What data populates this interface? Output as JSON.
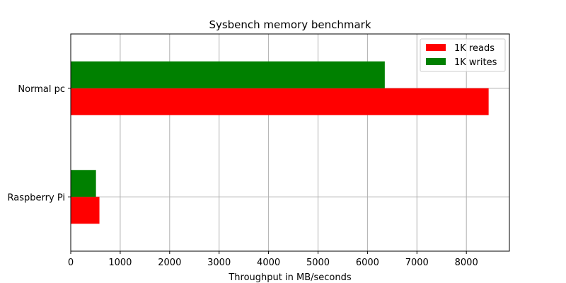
{
  "chart_data": {
    "type": "bar",
    "orientation": "horizontal",
    "title": "Sysbench memory benchmark",
    "xlabel": "Throughput in MB/seconds",
    "ylabel": "",
    "categories": [
      "Raspberry Pi",
      "Normal pc"
    ],
    "series": [
      {
        "name": "1K reads",
        "color": "#ff0000",
        "values": [
          580,
          8450
        ]
      },
      {
        "name": "1K writes",
        "color": "#008000",
        "values": [
          510,
          6350
        ]
      }
    ],
    "xlim": [
      0,
      8870
    ],
    "xticks": [
      0,
      1000,
      2000,
      3000,
      4000,
      5000,
      6000,
      7000,
      8000
    ],
    "grid": true,
    "legend_position": "top-right"
  }
}
